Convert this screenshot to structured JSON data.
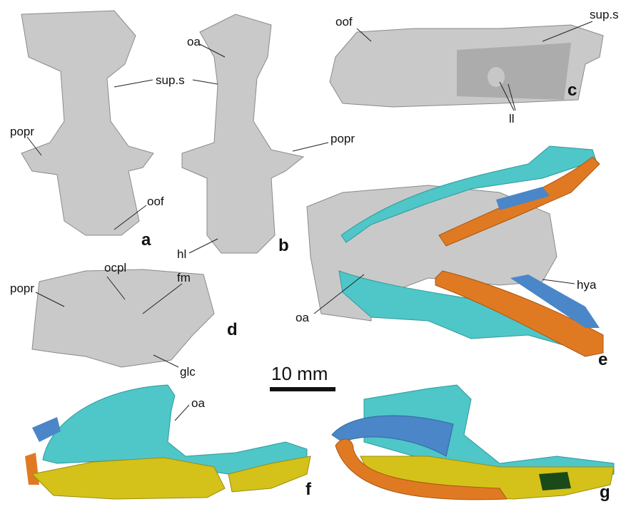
{
  "panel_letters": [
    "a",
    "b",
    "c",
    "d",
    "e",
    "f",
    "g"
  ],
  "labels": [
    "sup.s",
    "oa",
    "popr",
    "popr",
    "oof",
    "hl",
    "oof",
    "sup.s",
    "ll",
    "ocpl",
    "fm",
    "popr",
    "glc",
    "hya",
    "oa",
    "oa"
  ],
  "scale_bar": {
    "label": "10 mm"
  }
}
